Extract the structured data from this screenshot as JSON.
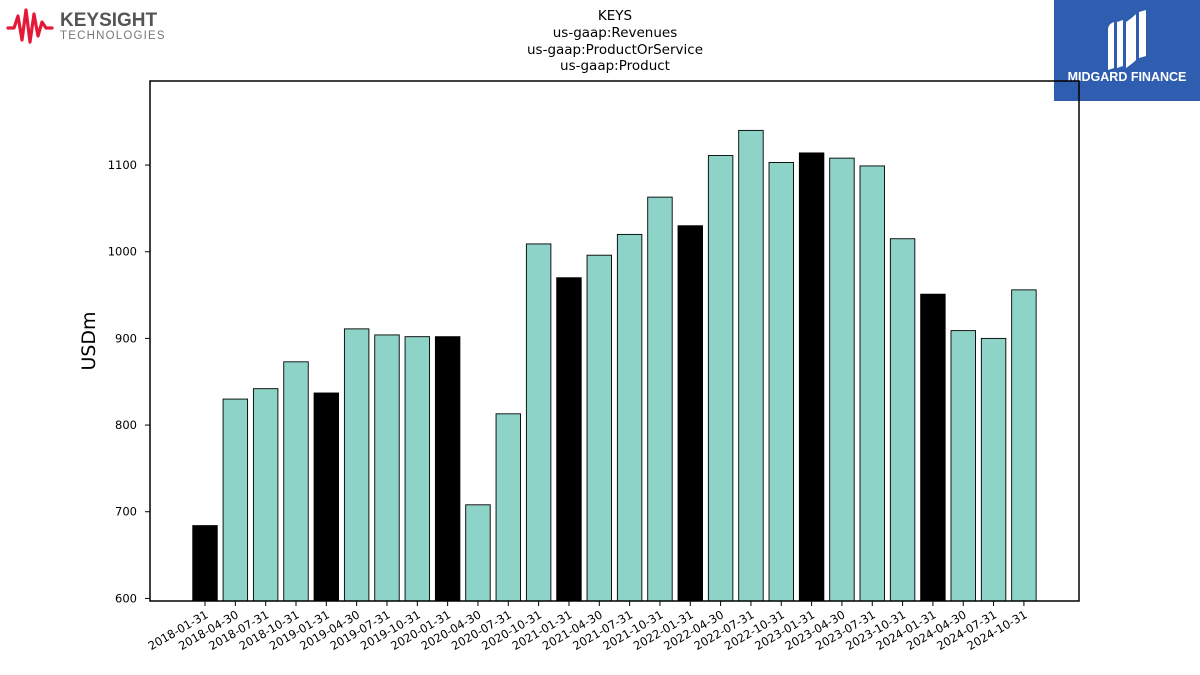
{
  "branding": {
    "left_logo_name": "KEYSIGHT",
    "left_logo_sub": "TECHNOLOGIES",
    "left_logo_color": "#e31937",
    "right_logo_name": "MIDGARD FINANCE",
    "right_logo_bg": "#2f5db0"
  },
  "chart_data": {
    "type": "bar",
    "title_lines": [
      "KEYS",
      "us-gaap:Revenues",
      "us-gaap:ProductOrService",
      "us-gaap:Product"
    ],
    "xlabel": "",
    "ylabel": "USDm",
    "ylim": [
      597,
      1197
    ],
    "yticks": [
      600,
      700,
      800,
      900,
      1000,
      1100
    ],
    "grid": false,
    "colors": {
      "quarter": "#8dd3c7",
      "fiscal_q1": "#000000",
      "edge": "#000000"
    },
    "categories": [
      "2018-01-31",
      "2018-04-30",
      "2018-07-31",
      "2018-10-31",
      "2019-01-31",
      "2019-04-30",
      "2019-07-31",
      "2019-10-31",
      "2020-01-31",
      "2020-04-30",
      "2020-07-31",
      "2020-10-31",
      "2021-01-31",
      "2021-04-30",
      "2021-07-31",
      "2021-10-31",
      "2022-01-31",
      "2022-04-30",
      "2022-07-31",
      "2022-10-31",
      "2023-01-31",
      "2023-04-30",
      "2023-07-31",
      "2023-10-31",
      "2024-01-31",
      "2024-04-30",
      "2024-07-31",
      "2024-10-31"
    ],
    "values": [
      684,
      830,
      842,
      873,
      837,
      911,
      904,
      902,
      902,
      708,
      813,
      1009,
      970,
      996,
      1020,
      1063,
      1030,
      1111,
      1140,
      1103,
      1114,
      1108,
      1099,
      1015,
      951,
      909,
      900,
      956
    ],
    "highlight": [
      true,
      false,
      false,
      false,
      true,
      false,
      false,
      false,
      true,
      false,
      false,
      false,
      true,
      false,
      false,
      false,
      true,
      false,
      false,
      false,
      true,
      false,
      false,
      false,
      true,
      false,
      false,
      false
    ]
  }
}
